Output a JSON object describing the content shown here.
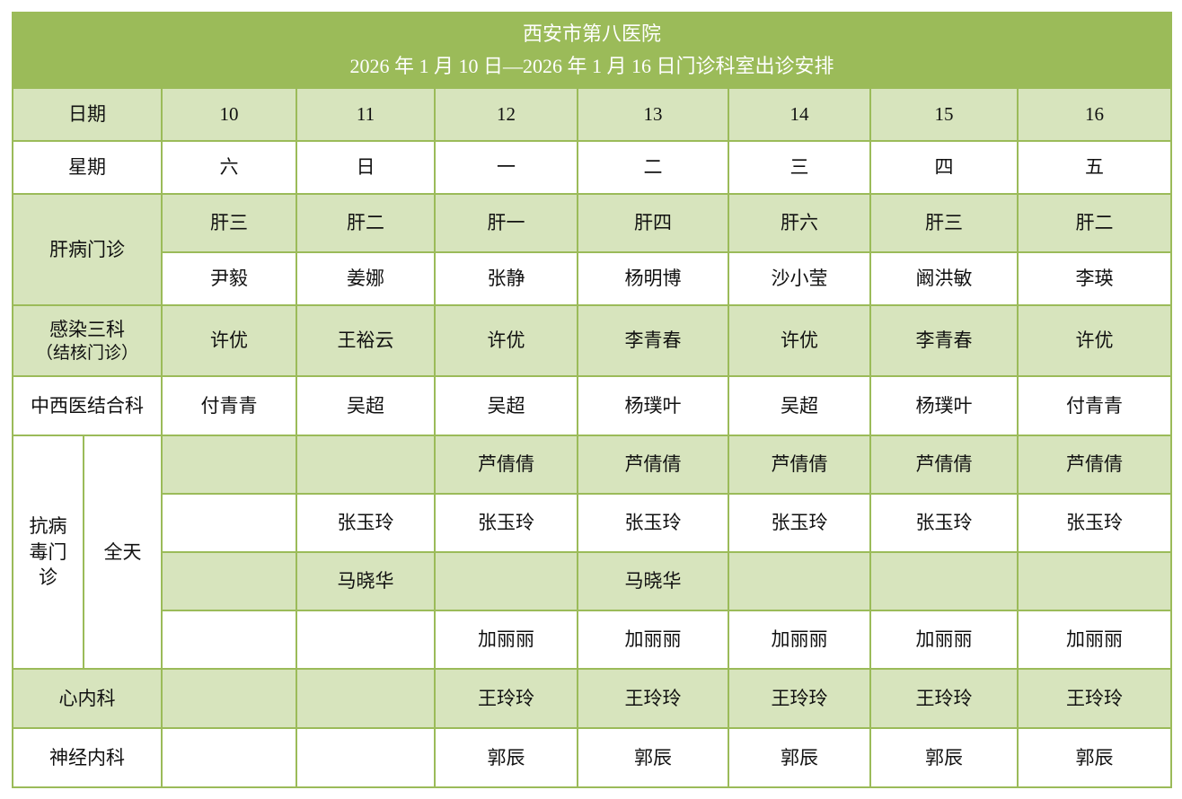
{
  "title": {
    "line1": "西安市第八医院",
    "line2": "2026 年 1 月 10 日—2026 年 1 月 16 日门诊科室出诊安排"
  },
  "colors": {
    "header": "#9bbb59",
    "band": "#d7e4bd",
    "border": "#9bbb59"
  },
  "date_row": {
    "label": "日期",
    "values": [
      "10",
      "11",
      "12",
      "13",
      "14",
      "15",
      "16"
    ]
  },
  "weekday_row": {
    "label": "星期",
    "values": [
      "六",
      "日",
      "一",
      "二",
      "三",
      "四",
      "五"
    ]
  },
  "liver": {
    "label": "肝病门诊",
    "rooms": [
      "肝三",
      "肝二",
      "肝一",
      "肝四",
      "肝六",
      "肝三",
      "肝二"
    ],
    "doctors": [
      "尹毅",
      "姜娜",
      "张静",
      "杨明博",
      "沙小莹",
      "阚洪敏",
      "李瑛"
    ]
  },
  "infection": {
    "label": "感染三科",
    "sublabel": "（结核门诊）",
    "doctors": [
      "许优",
      "王裕云",
      "许优",
      "李青春",
      "许优",
      "李青春",
      "许优"
    ]
  },
  "tcm": {
    "label": "中西医结合科",
    "doctors": [
      "付青青",
      "吴超",
      "吴超",
      "杨璞叶",
      "吴超",
      "杨璞叶",
      "付青青"
    ]
  },
  "antiviral": {
    "label_lines": [
      "抗病",
      "毒门",
      "诊"
    ],
    "session": "全天",
    "rows": [
      [
        "",
        "",
        "芦倩倩",
        "芦倩倩",
        "芦倩倩",
        "芦倩倩",
        "芦倩倩"
      ],
      [
        "",
        "张玉玲",
        "张玉玲",
        "张玉玲",
        "张玉玲",
        "张玉玲",
        "张玉玲"
      ],
      [
        "",
        "马晓华",
        "",
        "马晓华",
        "",
        "",
        ""
      ],
      [
        "",
        "",
        "加丽丽",
        "加丽丽",
        "加丽丽",
        "加丽丽",
        "加丽丽"
      ]
    ]
  },
  "cardiology": {
    "label": "心内科",
    "doctors": [
      "",
      "",
      "王玲玲",
      "王玲玲",
      "王玲玲",
      "王玲玲",
      "王玲玲"
    ]
  },
  "neurology": {
    "label": "神经内科",
    "doctors": [
      "",
      "",
      "郭辰",
      "郭辰",
      "郭辰",
      "郭辰",
      "郭辰"
    ]
  }
}
